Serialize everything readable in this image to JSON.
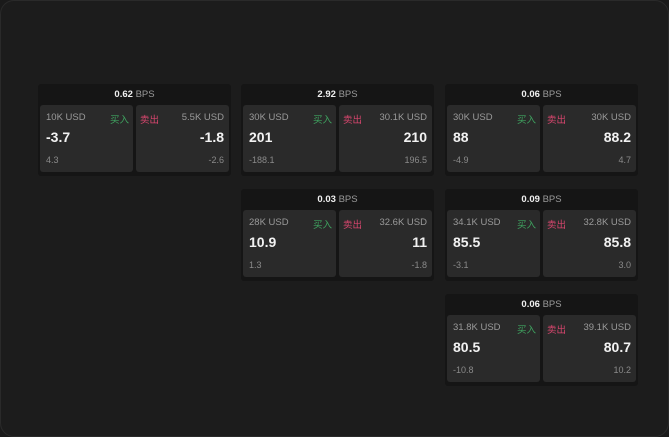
{
  "labels": {
    "unit": "BPS",
    "buy": "买入",
    "sell": "卖出"
  },
  "colors": {
    "buy": "#3fa460",
    "sell": "#d8466e",
    "background": "#1c1c1c",
    "box": "#2a2a2a"
  },
  "cards": [
    {
      "bps": "0.62",
      "buy": {
        "qty": "10K USD",
        "price": "-3.7",
        "change": "4.3"
      },
      "sell": {
        "qty": "5.5K USD",
        "price": "-1.8",
        "change": "-2.6"
      }
    },
    {
      "bps": "2.92",
      "buy": {
        "qty": "30K USD",
        "price": "201",
        "change": "-188.1"
      },
      "sell": {
        "qty": "30.1K USD",
        "price": "210",
        "change": "196.5"
      }
    },
    {
      "bps": "0.06",
      "buy": {
        "qty": "30K USD",
        "price": "88",
        "change": "-4.9"
      },
      "sell": {
        "qty": "30K USD",
        "price": "88.2",
        "change": "4.7"
      }
    },
    {
      "bps": "0.03",
      "buy": {
        "qty": "28K USD",
        "price": "10.9",
        "change": "1.3"
      },
      "sell": {
        "qty": "32.6K USD",
        "price": "11",
        "change": "-1.8"
      }
    },
    {
      "bps": "0.09",
      "buy": {
        "qty": "34.1K USD",
        "price": "85.5",
        "change": "-3.1"
      },
      "sell": {
        "qty": "32.8K USD",
        "price": "85.8",
        "change": "3.0"
      }
    },
    {
      "bps": "0.06",
      "buy": {
        "qty": "31.8K USD",
        "price": "80.5",
        "change": "-10.8"
      },
      "sell": {
        "qty": "39.1K USD",
        "price": "80.7",
        "change": "10.2"
      }
    }
  ]
}
